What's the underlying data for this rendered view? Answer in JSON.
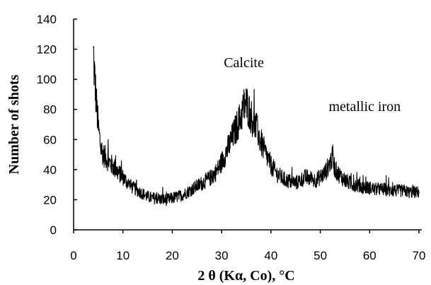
{
  "chart_data": {
    "type": "line",
    "title": "",
    "xlabel": "2 θ (Kα, Co), °C",
    "ylabel": "Number of shots",
    "xlim": [
      0,
      70
    ],
    "ylim": [
      0,
      140
    ],
    "x_ticks": [
      0,
      10,
      20,
      30,
      40,
      50,
      60,
      70
    ],
    "y_ticks": [
      0,
      20,
      40,
      60,
      80,
      100,
      120,
      140
    ],
    "grid": false,
    "legend": "none",
    "line_color": "#000000",
    "annotations": [
      {
        "text": "Calcite",
        "x": 34.5,
        "y": 108
      },
      {
        "text": "metallic iron",
        "x": 59,
        "y": 79
      }
    ],
    "series": [
      {
        "x": [
          4.0,
          4.3,
          4.6,
          5.0,
          5.5,
          6.0,
          7.0,
          8.0,
          9.0,
          10.0,
          11.0,
          12.0,
          13.0,
          14.0,
          15.0,
          16.0,
          17.0,
          18.0,
          19.0,
          20.0,
          21.0,
          22.0,
          23.0,
          24.0,
          25.0,
          26.0,
          27.0,
          28.0,
          29.0,
          30.0,
          31.0,
          32.0,
          33.0,
          34.0,
          34.5,
          35.0,
          35.5,
          36.0,
          37.0,
          38.0,
          39.0,
          40.0,
          41.0,
          42.0,
          43.0,
          44.0,
          45.0,
          46.0,
          47.0,
          48.0,
          49.0,
          50.0,
          51.0,
          52.0,
          52.5,
          53.0,
          54.0,
          55.0,
          56.0,
          57.0,
          58.0,
          59.0,
          60.0,
          61.0,
          62.0,
          63.0,
          64.0,
          65.0,
          66.0,
          67.0,
          68.0,
          69.0,
          70.0
        ],
        "y": [
          115,
          100,
          85,
          68,
          55,
          50,
          46,
          42,
          38,
          35,
          31,
          28,
          26,
          24,
          22,
          21,
          21,
          20,
          20,
          21,
          22,
          23,
          25,
          27,
          29,
          31,
          33,
          35,
          39,
          45,
          52,
          60,
          68,
          76,
          82,
          84,
          80,
          75,
          68,
          58,
          50,
          43,
          38,
          35,
          33,
          32,
          31,
          33,
          35,
          34,
          33,
          35,
          38,
          45,
          48,
          40,
          36,
          33,
          31,
          30,
          29,
          28,
          28,
          27,
          27,
          27,
          26,
          26,
          26,
          26,
          25,
          25,
          25
        ]
      }
    ]
  }
}
